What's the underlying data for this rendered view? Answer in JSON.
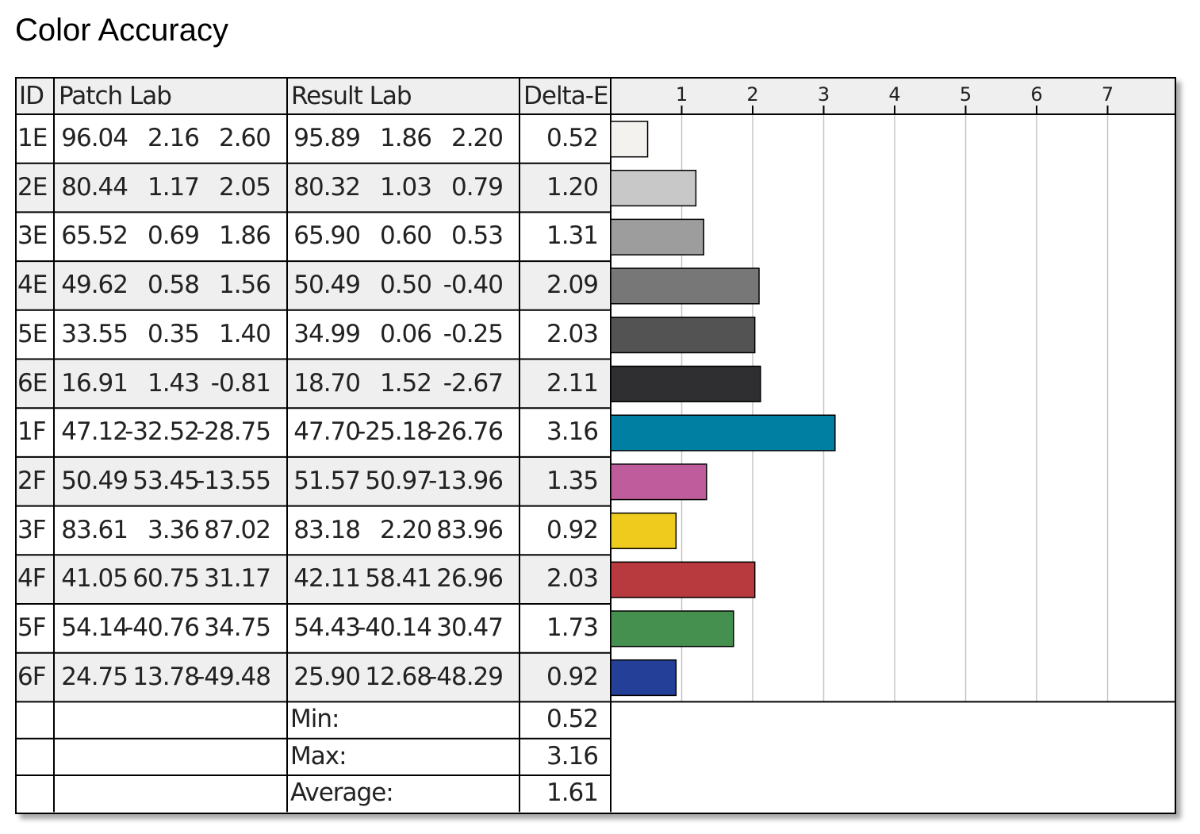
{
  "title": "Color Accuracy",
  "headers": {
    "id": "ID",
    "patch": "Patch Lab",
    "result": "Result Lab",
    "delta": "Delta-E"
  },
  "rows": [
    {
      "id": "1E",
      "patch": [
        "96.04",
        "2.16",
        "2.60"
      ],
      "result": [
        "95.89",
        "1.86",
        "2.20"
      ],
      "delta": "0.52",
      "color": "#f4f2ee",
      "shade": false
    },
    {
      "id": "2E",
      "patch": [
        "80.44",
        "1.17",
        "2.05"
      ],
      "result": [
        "80.32",
        "1.03",
        "0.79"
      ],
      "delta": "1.20",
      "color": "#c8c8c8",
      "shade": true
    },
    {
      "id": "3E",
      "patch": [
        "65.52",
        "0.69",
        "1.86"
      ],
      "result": [
        "65.90",
        "0.60",
        "0.53"
      ],
      "delta": "1.31",
      "color": "#9d9d9d",
      "shade": false
    },
    {
      "id": "4E",
      "patch": [
        "49.62",
        "0.58",
        "1.56"
      ],
      "result": [
        "50.49",
        "0.50",
        "-0.40"
      ],
      "delta": "2.09",
      "color": "#777777",
      "shade": true
    },
    {
      "id": "5E",
      "patch": [
        "33.55",
        "0.35",
        "1.40"
      ],
      "result": [
        "34.99",
        "0.06",
        "-0.25"
      ],
      "delta": "2.03",
      "color": "#535353",
      "shade": false
    },
    {
      "id": "6E",
      "patch": [
        "16.91",
        "1.43",
        "-0.81"
      ],
      "result": [
        "18.70",
        "1.52",
        "-2.67"
      ],
      "delta": "2.11",
      "color": "#2f2f31",
      "shade": true
    },
    {
      "id": "1F",
      "patch": [
        "47.12",
        "-32.52",
        "-28.75"
      ],
      "result": [
        "47.70",
        "-25.18",
        "-26.76"
      ],
      "delta": "3.16",
      "color": "#007fa2",
      "shade": false
    },
    {
      "id": "2F",
      "patch": [
        "50.49",
        "53.45",
        "-13.55"
      ],
      "result": [
        "51.57",
        "50.97",
        "-13.96"
      ],
      "delta": "1.35",
      "color": "#bf5c9b",
      "shade": true
    },
    {
      "id": "3F",
      "patch": [
        "83.61",
        "3.36",
        "87.02"
      ],
      "result": [
        "83.18",
        "2.20",
        "83.96"
      ],
      "delta": "0.92",
      "color": "#efcb1d",
      "shade": false
    },
    {
      "id": "4F",
      "patch": [
        "41.05",
        "60.75",
        "31.17"
      ],
      "result": [
        "42.11",
        "58.41",
        "26.96"
      ],
      "delta": "2.03",
      "color": "#b83a3e",
      "shade": true
    },
    {
      "id": "5F",
      "patch": [
        "54.14",
        "-40.76",
        "34.75"
      ],
      "result": [
        "54.43",
        "-40.14",
        "30.47"
      ],
      "delta": "1.73",
      "color": "#45904e",
      "shade": false
    },
    {
      "id": "6F",
      "patch": [
        "24.75",
        "13.78",
        "-49.48"
      ],
      "result": [
        "25.90",
        "12.68",
        "-48.29"
      ],
      "delta": "0.92",
      "color": "#233f97",
      "shade": true
    }
  ],
  "summary": [
    {
      "label": "Min:",
      "value": "0.52"
    },
    {
      "label": "Max:",
      "value": "3.16"
    },
    {
      "label": "Average:",
      "value": "1.61"
    }
  ],
  "chart_data": {
    "type": "bar",
    "orientation": "horizontal",
    "categories": [
      "1E",
      "2E",
      "3E",
      "4E",
      "5E",
      "6E",
      "1F",
      "2F",
      "3F",
      "4F",
      "5F",
      "6F"
    ],
    "values": [
      0.52,
      1.2,
      1.31,
      2.09,
      2.03,
      2.11,
      3.16,
      1.35,
      0.92,
      2.03,
      1.73,
      0.92
    ],
    "xlim": [
      0,
      8
    ],
    "ticks": [
      1,
      2,
      3,
      4,
      5,
      6,
      7
    ],
    "grid": true
  }
}
